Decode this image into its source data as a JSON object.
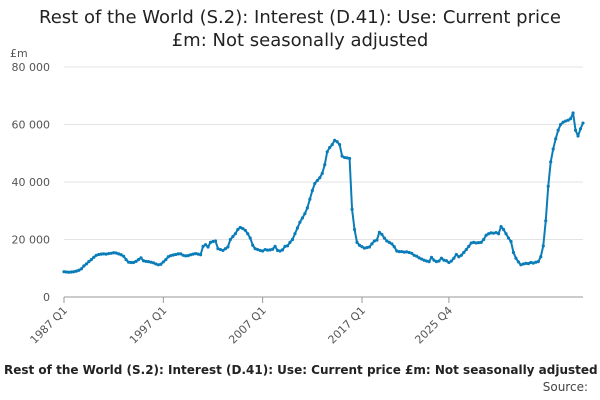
{
  "chart_data": {
    "type": "line",
    "title_line1": "Rest of the World (S.2): Interest (D.41): Use: Current price",
    "title_line2": "£m: Not seasonally adjusted",
    "ylabel": "£m",
    "ylim": [
      0,
      80000
    ],
    "y_ticks": [
      "0",
      "20 000",
      "40 000",
      "60 000",
      "80 000"
    ],
    "x_ticks": [
      "1987 Q1",
      "1997 Q1",
      "2007 Q1",
      "2017 Q1",
      "2025 Q4"
    ],
    "grid": "horizontal",
    "legend": "none",
    "line_color": "#0a7cb8",
    "start_year": 1987,
    "series": [
      {
        "values": [
          8800,
          8700,
          8600,
          8700,
          8800,
          9000,
          9300,
          9800,
          10800,
          11500,
          12300,
          13000,
          13800,
          14500,
          14800,
          14900,
          15000,
          14900,
          15100,
          15200,
          15400,
          15300,
          15000,
          14700,
          14200,
          13000,
          12100,
          12000,
          12000,
          12400,
          13000,
          13600,
          12600,
          12400,
          12300,
          12100,
          11900,
          11500,
          11200,
          11400,
          12200,
          13000,
          14000,
          14400,
          14600,
          14800,
          15000,
          15000,
          14500,
          14300,
          14400,
          14700,
          14900,
          15100,
          14900,
          14700,
          17600,
          18200,
          17400,
          19000,
          19300,
          19500,
          16800,
          16500,
          16200,
          16800,
          17400,
          20000,
          21000,
          22000,
          23500,
          24200,
          23800,
          23200,
          22000,
          20500,
          18000,
          16800,
          16500,
          16200,
          16000,
          16500,
          16300,
          16400,
          16600,
          17600,
          16200,
          16000,
          16400,
          17600,
          17800,
          19000,
          20000,
          22000,
          24000,
          26000,
          27500,
          29000,
          31000,
          34000,
          37000,
          39500,
          40500,
          41500,
          43000,
          46000,
          50500,
          52000,
          53000,
          54500,
          54000,
          53000,
          49000,
          48500,
          48400,
          48200,
          30500,
          23500,
          19000,
          18000,
          17500,
          17000,
          17200,
          17400,
          18500,
          19500,
          19800,
          22500,
          21800,
          20500,
          19500,
          19000,
          18500,
          17500,
          16000,
          15800,
          15800,
          15600,
          15700,
          15500,
          15200,
          14500,
          14200,
          13600,
          13200,
          12800,
          12500,
          12300,
          13800,
          12800,
          12300,
          12500,
          13500,
          12800,
          12600,
          12000,
          12500,
          13500,
          14800,
          14000,
          14500,
          15500,
          16500,
          17600,
          18800,
          19000,
          18800,
          18900,
          19000,
          20000,
          21500,
          22000,
          22300,
          22200,
          22400,
          22000,
          24500,
          23500,
          22000,
          20500,
          19300,
          15500,
          13500,
          12200,
          11200,
          11500,
          11700,
          11600,
          12000,
          11800,
          12100,
          12300,
          14000,
          17800,
          26500,
          38500,
          47000,
          51500,
          55000,
          58000,
          60000,
          60800,
          61200,
          61500,
          62000,
          64000,
          58000,
          56000,
          58500,
          60500
        ]
      }
    ]
  },
  "footer": {
    "title": "Rest of the World (S.2): Interest (D.41): Use: Current price £m: Not seasonally adjusted",
    "source": "Source:"
  }
}
